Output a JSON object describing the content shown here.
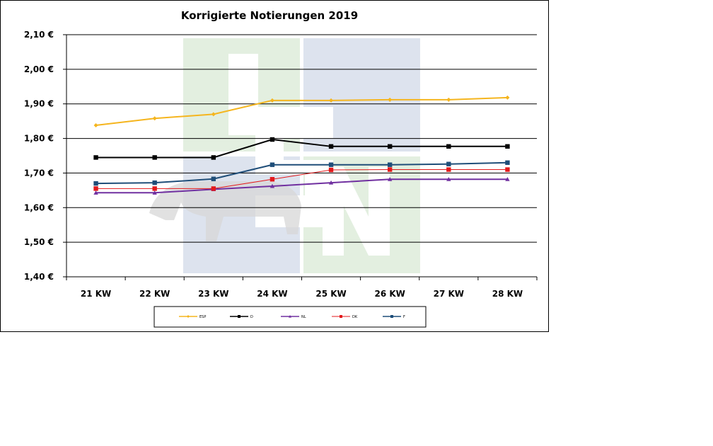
{
  "chart_data": {
    "type": "line",
    "title": "Korrigierte Notierungen 2019",
    "categories": [
      "21 KW",
      "22 KW",
      "23 KW",
      "24 KW",
      "25 KW",
      "26 KW",
      "27 KW",
      "28 KW"
    ],
    "ylim": [
      1.4,
      2.1
    ],
    "yticks": [
      {
        "value": 2.1,
        "label": "2,10 €"
      },
      {
        "value": 2.0,
        "label": "2,00 €"
      },
      {
        "value": 1.9,
        "label": "1,90 €"
      },
      {
        "value": 1.8,
        "label": "1,80 €"
      },
      {
        "value": 1.7,
        "label": "1,70 €"
      },
      {
        "value": 1.6,
        "label": "1,60 €"
      },
      {
        "value": 1.5,
        "label": "1,50 €"
      },
      {
        "value": 1.4,
        "label": "1,40 €"
      }
    ],
    "grid": true,
    "legend_position": "bottom",
    "series": [
      {
        "name": "ESP",
        "color": "#f5b51e",
        "marker": "diamond",
        "width": 2,
        "values": [
          1.838,
          1.858,
          1.87,
          1.91,
          1.91,
          1.912,
          1.912,
          1.918
        ]
      },
      {
        "name": "D",
        "color": "#000000",
        "marker": "square",
        "width": 2,
        "values": [
          1.745,
          1.745,
          1.745,
          1.797,
          1.777,
          1.777,
          1.777,
          1.777
        ]
      },
      {
        "name": "NL",
        "color": "#7030a0",
        "marker": "triangle",
        "width": 2,
        "values": [
          1.643,
          1.643,
          1.653,
          1.662,
          1.672,
          1.682,
          1.682,
          1.682
        ]
      },
      {
        "name": "DK",
        "color": "#e31a1c",
        "marker": "square",
        "width": 1,
        "values": [
          1.655,
          1.655,
          1.655,
          1.682,
          1.709,
          1.71,
          1.71,
          1.71
        ]
      },
      {
        "name": "F",
        "color": "#1f4e79",
        "marker": "square",
        "width": 2,
        "values": [
          1.67,
          1.672,
          1.683,
          1.724,
          1.724,
          1.724,
          1.726,
          1.73
        ]
      }
    ]
  },
  "watermark": {
    "letters": [
      "I",
      "S",
      "N"
    ],
    "colors": {
      "green": "#e3efe0",
      "blue": "#dde3ee",
      "silhouette": "#d7d7d7"
    }
  }
}
